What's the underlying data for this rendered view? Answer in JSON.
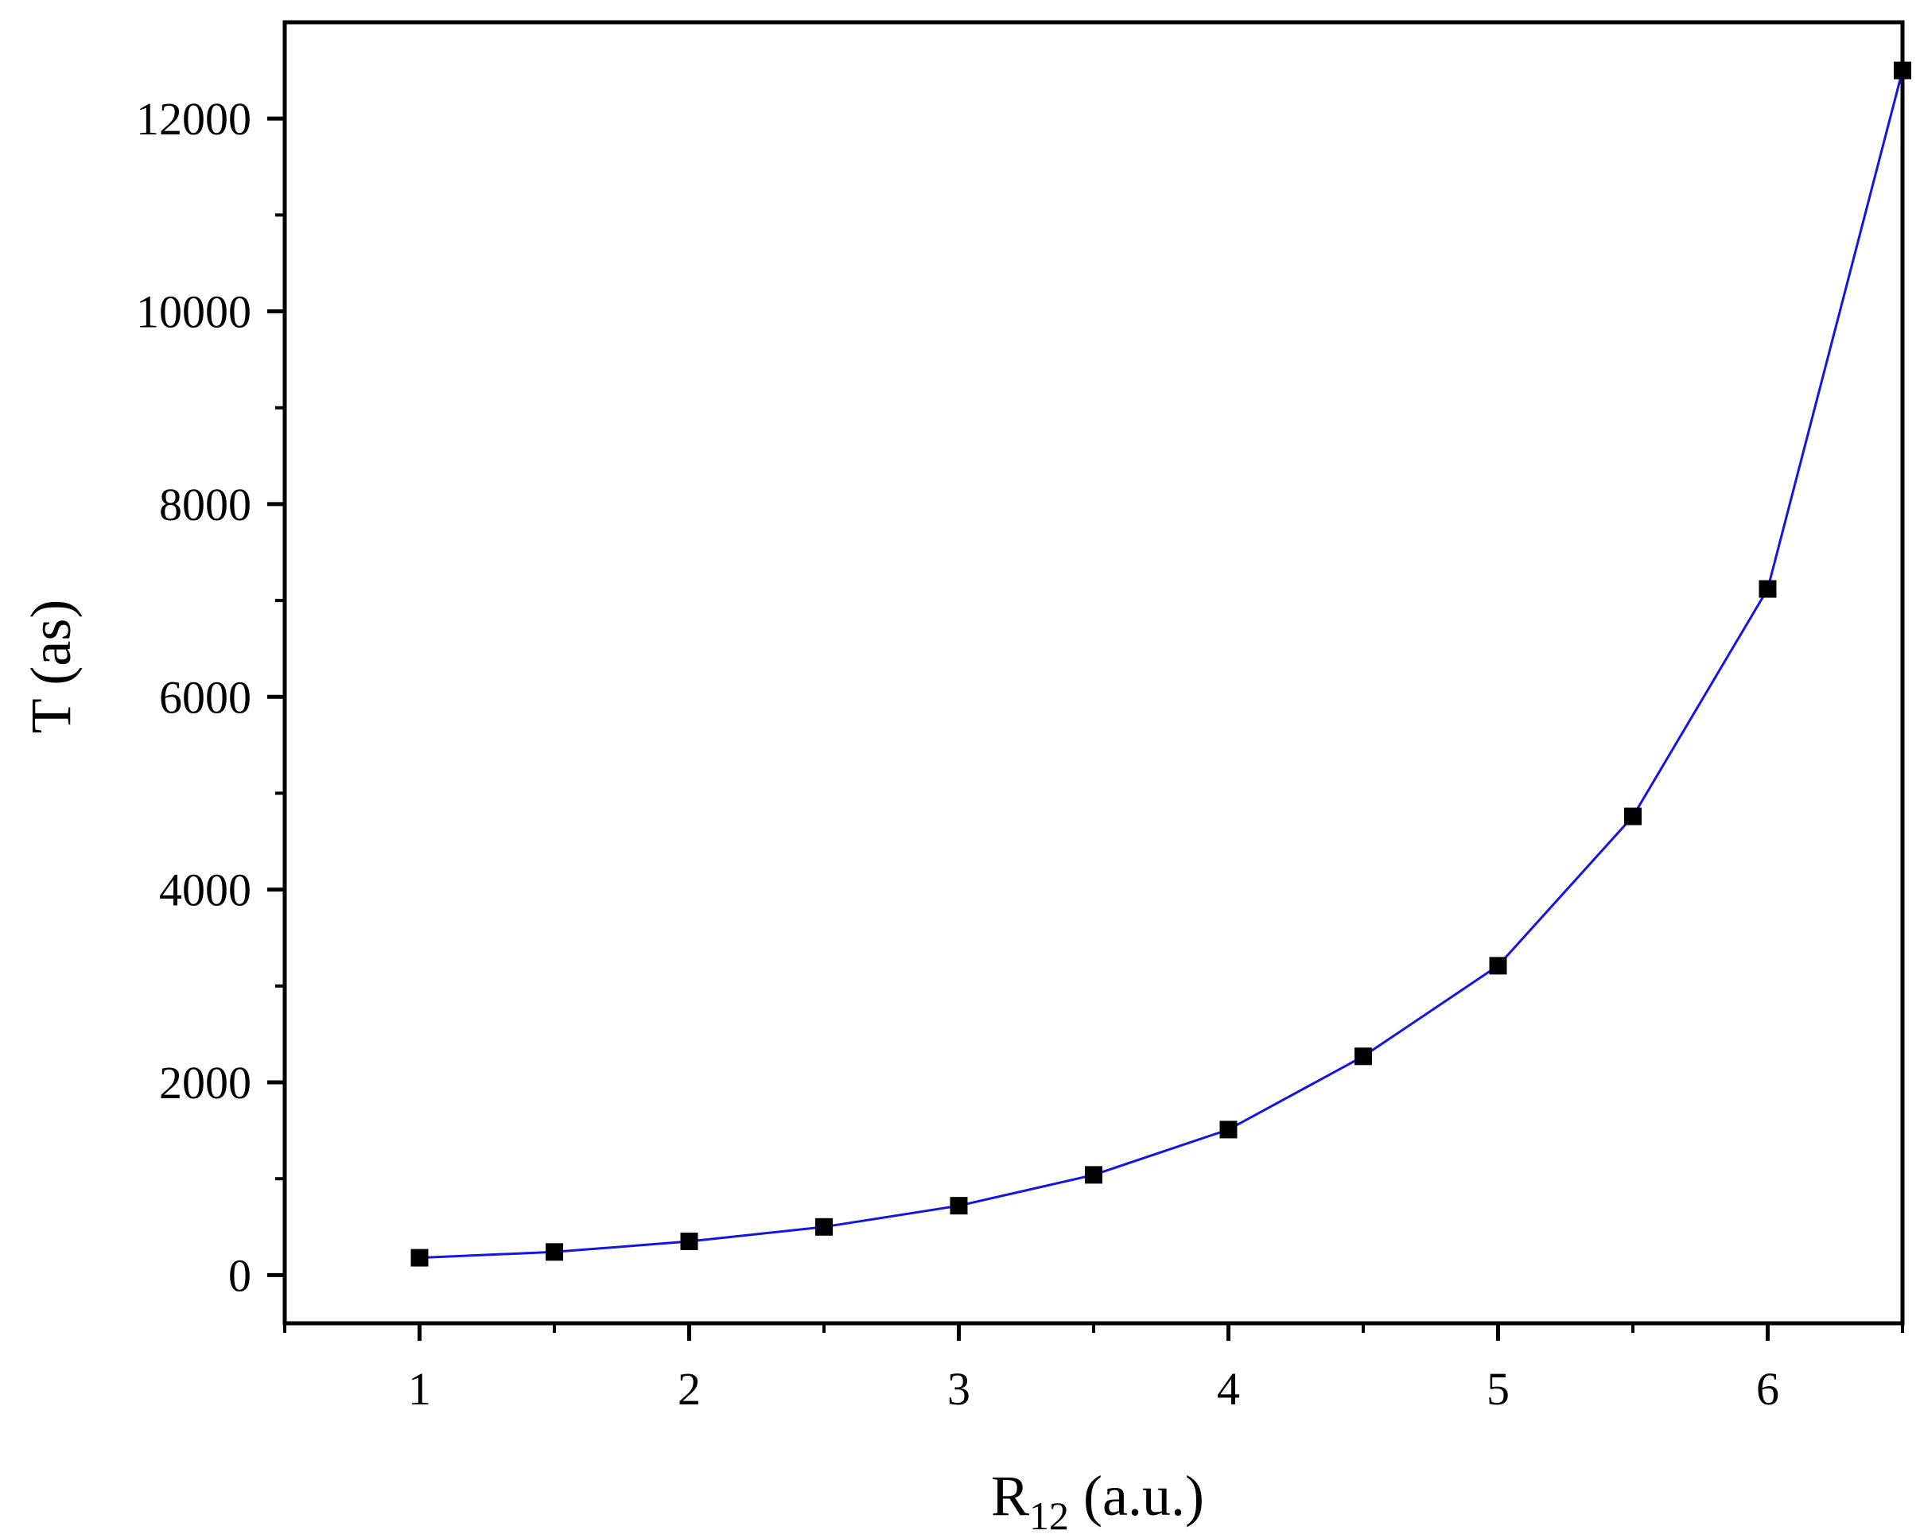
{
  "chart_data": {
    "type": "line",
    "title": "",
    "xlabel": {
      "main": "R",
      "sub": "12",
      "suffix": " (a.u.)"
    },
    "ylabel": "T (as)",
    "xlim": [
      0.5,
      6.5
    ],
    "ylim": [
      -500,
      13000
    ],
    "x_ticks": [
      1,
      2,
      3,
      4,
      5,
      6
    ],
    "x_minor_ticks": [
      0.5,
      1.5,
      2.5,
      3.5,
      4.5,
      5.5,
      6.5
    ],
    "y_ticks": [
      0,
      2000,
      4000,
      6000,
      8000,
      10000,
      12000
    ],
    "y_minor_ticks": [
      1000,
      3000,
      5000,
      7000,
      9000,
      11000
    ],
    "grid": false,
    "legend": "none",
    "series": [
      {
        "line_color": "#1414e6",
        "marker": "square",
        "marker_color": "#000000",
        "x": [
          1,
          1.5,
          2,
          2.5,
          3,
          3.5,
          4,
          4.5,
          5,
          5.5,
          6,
          6.5
        ],
        "y": [
          180,
          240,
          350,
          500,
          720,
          1040,
          1510,
          2270,
          3210,
          4760,
          7120,
          12500
        ]
      }
    ]
  }
}
